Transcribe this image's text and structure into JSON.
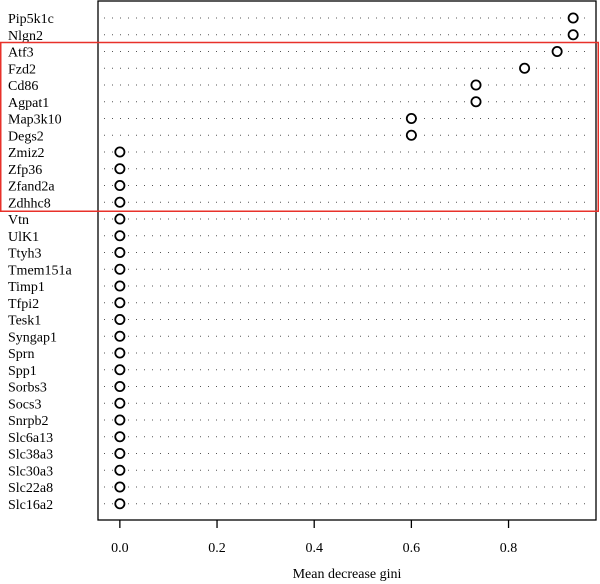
{
  "chart_data": {
    "type": "dot",
    "xlabel": "Mean decrease gini",
    "xlim": [
      -0.045,
      0.98
    ],
    "xticks": [
      0.0,
      0.2,
      0.4,
      0.6,
      0.8
    ],
    "xtick_labels": [
      "0.0",
      "0.2",
      "0.4",
      "0.6",
      "0.8"
    ],
    "grid": "dotted horizontal guide per row",
    "highlight": {
      "color": "#e8312a",
      "from": "Atf3",
      "to": "Zdhhc8"
    },
    "categories": [
      "Pip5k1c",
      "Nlgn2",
      "Atf3",
      "Fzd2",
      "Cd86",
      "Agpat1",
      "Map3k10",
      "Degs2",
      "Zmiz2",
      "Zfp36",
      "Zfand2a",
      "Zdhhc8",
      "Vtn",
      "UlK1",
      "Ttyh3",
      "Tmem151a",
      "Timp1",
      "Tfpi2",
      "Tesk1",
      "Syngap1",
      "Sprn",
      "Spp1",
      "Sorbs3",
      "Socs3",
      "Snrpb2",
      "Slc6a13",
      "Slc38a3",
      "Slc30a3",
      "Slc22a8",
      "Slc16a2"
    ],
    "values": [
      0.933,
      0.933,
      0.9,
      0.833,
      0.733,
      0.733,
      0.6,
      0.6,
      0,
      0,
      0,
      0,
      0,
      0,
      0,
      0,
      0,
      0,
      0,
      0,
      0,
      0,
      0,
      0,
      0,
      0,
      0,
      0,
      0,
      0
    ]
  }
}
